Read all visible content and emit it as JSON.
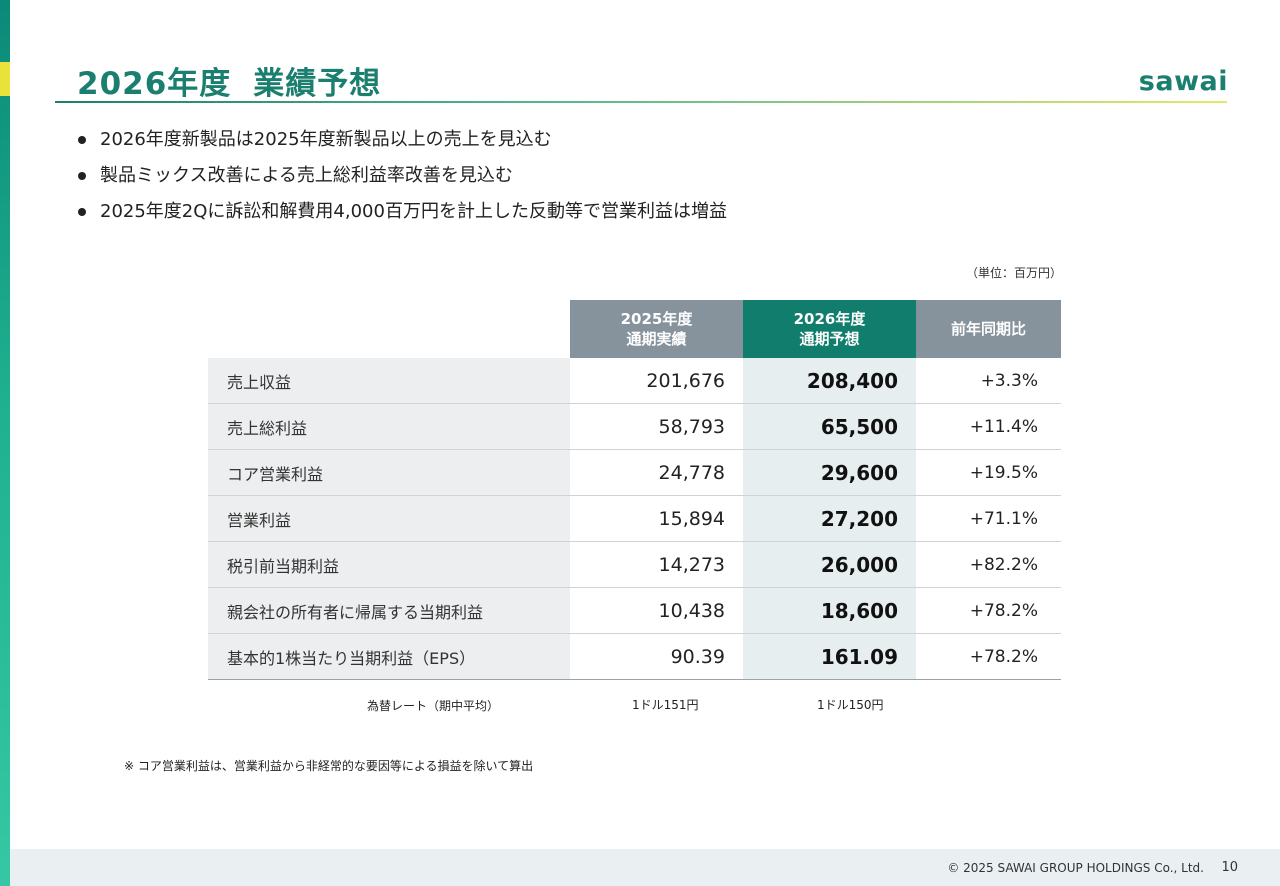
{
  "slide": {
    "title_part1": "2026年度",
    "title_part2": "業績予想",
    "logo_text": "sawai",
    "accent_color": "#1a7f6e",
    "bullets": [
      "2026年度新製品は2025年度新製品以上の売上を見込む",
      "製品ミックス改善による売上総利益率改善を見込む",
      "2025年度2Qに訴訟和解費用4,000百万円を計上した反動等で営業利益は増益"
    ],
    "unit": "（単位：百万円）"
  },
  "table": {
    "headers": {
      "col2025_line1": "2025年度",
      "col2025_line2": "通期実績",
      "col2026_line1": "2026年度",
      "col2026_line2": "通期予想",
      "yoy": "前年同期比"
    },
    "rows": [
      {
        "label": "売上収益",
        "actual_2025": "201,676",
        "forecast_2026": "208,400",
        "yoy": "+3.3%"
      },
      {
        "label": "売上総利益",
        "actual_2025": "58,793",
        "forecast_2026": "65,500",
        "yoy": "+11.4%"
      },
      {
        "label": "コア営業利益",
        "actual_2025": "24,778",
        "forecast_2026": "29,600",
        "yoy": "+19.5%"
      },
      {
        "label": "営業利益",
        "actual_2025": "15,894",
        "forecast_2026": "27,200",
        "yoy": "+71.1%"
      },
      {
        "label": "税引前当期利益",
        "actual_2025": "14,273",
        "forecast_2026": "26,000",
        "yoy": "+82.2%"
      },
      {
        "label": "親会社の所有者に帰属する当期利益",
        "actual_2025": "10,438",
        "forecast_2026": "18,600",
        "yoy": "+78.2%"
      },
      {
        "label": "基本的1株当たり当期利益（EPS）",
        "actual_2025": "90.39",
        "forecast_2026": "161.09",
        "yoy": "+78.2%"
      }
    ],
    "fx": {
      "label": "為替レート（期中平均）",
      "rate_2025": "1ドル151円",
      "rate_2026": "1ドル150円"
    }
  },
  "note": "※ コア営業利益は、営業利益から非経常的な要因等による損益を除いて算出",
  "footer": {
    "copyright": "© 2025 SAWAI GROUP HOLDINGS Co., Ltd.",
    "page_number": "10"
  }
}
